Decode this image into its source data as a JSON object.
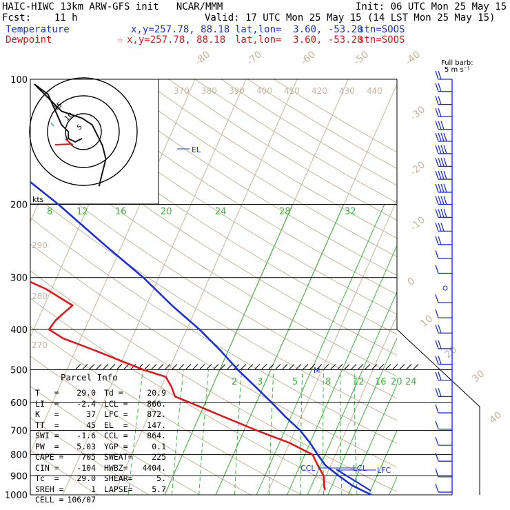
{
  "header": {
    "model_line": "HAIC-HIWC 13km ARW-GFS init   NCAR/MMM",
    "init_line": "Init: 06 UTC Mon 25 May 15",
    "fcst_line": "Fcst:    11 h",
    "valid_line": "Valid: 17 UTC Mon 25 May 15 (14 LST Mon 25 May 15)",
    "temperature": {
      "label": "Temperature",
      "xy": "x,y=257.78, 88.18",
      "latlon": "lat,lon=  3.60, -53.20",
      "stn": "stn=SOOS",
      "color": "#1a2fd6"
    },
    "dewpoint": {
      "label": "Dewpoint",
      "marker": "☆",
      "xy": "x,y=257.78, 88.18",
      "latlon": "lat,lon=  3.60, -53.20",
      "stn": "stn=SOOS",
      "color": "#e01818"
    }
  },
  "barb_legend": {
    "line1": "Full barb:",
    "line2": "5 m s⁻¹"
  },
  "hodograph": {
    "units": "kts",
    "ring_labels": [
      "5",
      "10",
      "15"
    ]
  },
  "parcel_info": {
    "title": "Parcel Info",
    "rows": [
      [
        "T   =",
        "29.0",
        "Td =",
        "20.9"
      ],
      [
        "LI  =",
        "-2.4",
        "LCL =",
        "866."
      ],
      [
        "K   =",
        "37",
        "LFC =",
        "872."
      ],
      [
        "TT  =",
        "45",
        "EL  =",
        "147."
      ],
      [
        "SWI =",
        "-1.6",
        "CCL =",
        "864."
      ],
      [
        "PW  =",
        "5.03",
        "YGP =",
        "0.1"
      ],
      [
        "CAPE =",
        "705",
        "SWEAT=",
        "225"
      ],
      [
        "CIN =",
        "-104",
        "HWBZ=",
        "4404."
      ],
      [
        "Tc  =",
        "29.0",
        "SHEAR=",
        "5."
      ],
      [
        "SREH =",
        "1",
        "LAPSE=",
        "5.7"
      ],
      [
        "CELL =",
        "106/07",
        "",
        ""
      ]
    ]
  },
  "level_markers": {
    "el": "EL",
    "m": "M",
    "ccl": "CCL",
    "lcl": "LCL",
    "lfc": "LFC"
  },
  "chart_data": {
    "type": "line",
    "chart_kind": "skew-T log-P sounding",
    "y_axis": {
      "label": "",
      "scale": "log",
      "range": [
        1000,
        100
      ],
      "ticks": [
        100,
        200,
        300,
        400,
        500,
        600,
        700,
        800,
        900,
        1000
      ]
    },
    "isotherm_labels": [
      -80,
      -70,
      -60,
      -50,
      -40,
      -30,
      -20,
      -10,
      0,
      10,
      20,
      30,
      40
    ],
    "theta_labels_top": [
      370,
      380,
      390,
      400,
      410,
      420,
      430,
      440
    ],
    "theta_labels_left": [
      290,
      280,
      270
    ],
    "mixing_ratio_labels_upper": [
      8,
      12,
      16,
      20,
      24,
      28,
      32
    ],
    "mixing_ratio_labels_lower": [
      2,
      3,
      5,
      8,
      12,
      16,
      20,
      24
    ],
    "series": [
      {
        "name": "Temperature",
        "color": "#1a2fd6",
        "points": [
          [
            1000,
            30.5
          ],
          [
            950,
            26.0
          ],
          [
            900,
            22.5
          ],
          [
            850,
            19.0
          ],
          [
            800,
            16.5
          ],
          [
            750,
            14.0
          ],
          [
            700,
            11.0
          ],
          [
            650,
            7.0
          ],
          [
            600,
            3.0
          ],
          [
            550,
            -1.5
          ],
          [
            500,
            -6.5
          ],
          [
            450,
            -11.5
          ],
          [
            400,
            -17.5
          ],
          [
            350,
            -25.0
          ],
          [
            300,
            -33.0
          ],
          [
            250,
            -43.5
          ],
          [
            200,
            -56.0
          ],
          [
            175,
            -64.0
          ],
          [
            150,
            -72.0
          ],
          [
            140,
            -75.5
          ],
          [
            125,
            -81.0
          ],
          [
            115,
            -82.0
          ],
          [
            108,
            -80.5
          ],
          [
            100,
            -78.0
          ]
        ]
      },
      {
        "name": "Dewpoint",
        "color": "#e01818",
        "points": [
          [
            975,
            21.0
          ],
          [
            950,
            20.5
          ],
          [
            900,
            19.5
          ],
          [
            850,
            17.5
          ],
          [
            800,
            15.5
          ],
          [
            750,
            10.0
          ],
          [
            700,
            2.5
          ],
          [
            650,
            -5.0
          ],
          [
            600,
            -13.0
          ],
          [
            580,
            -16.5
          ],
          [
            550,
            -18.0
          ],
          [
            520,
            -20.0
          ],
          [
            500,
            -25.0
          ],
          [
            450,
            -36.0
          ],
          [
            420,
            -43.5
          ],
          [
            400,
            -47.0
          ],
          [
            380,
            -46.5
          ],
          [
            350,
            -44.5
          ],
          [
            320,
            -51.0
          ],
          [
            300,
            -57.0
          ],
          [
            280,
            -65.0
          ],
          [
            250,
            -72.5
          ],
          [
            220,
            -76.0
          ],
          [
            200,
            -78.5
          ],
          [
            180,
            -85.0
          ],
          [
            160,
            -91.0
          ],
          [
            140,
            -96.0
          ],
          [
            120,
            -97.0
          ],
          [
            110,
            -95.5
          ],
          [
            100,
            -93.0
          ]
        ]
      },
      {
        "name": "Hodograph",
        "color": "#111111",
        "points": [
          [
            0,
            0
          ],
          [
            -2,
            -1
          ],
          [
            -4,
            0
          ],
          [
            -4,
            2
          ],
          [
            -6,
            4
          ],
          [
            -10,
            13
          ],
          [
            -14,
            16
          ],
          [
            -6,
            8
          ],
          [
            0,
            6
          ],
          [
            3,
            4
          ],
          [
            6,
            -2
          ],
          [
            7,
            -6
          ],
          [
            6,
            -10
          ],
          [
            5,
            -14
          ]
        ]
      }
    ],
    "wind_barbs": {
      "units": "m s-1",
      "levels_hpa": [
        100,
        107,
        115,
        123,
        132,
        141,
        151,
        162,
        174,
        187,
        200,
        215,
        232,
        250,
        270,
        293,
        318,
        345,
        375,
        408,
        445,
        485,
        530,
        580,
        635,
        695,
        760,
        830,
        905,
        985
      ],
      "speeds_ms": [
        10,
        10,
        10,
        12,
        15,
        20,
        20,
        20,
        20,
        20,
        20,
        20,
        15,
        10,
        7,
        5,
        0,
        5,
        7,
        10,
        10,
        10,
        10,
        10,
        7,
        7,
        5,
        5,
        5,
        5
      ]
    },
    "annotations": [
      "EL",
      "M",
      "CCL",
      "LCL",
      "LFC"
    ]
  }
}
